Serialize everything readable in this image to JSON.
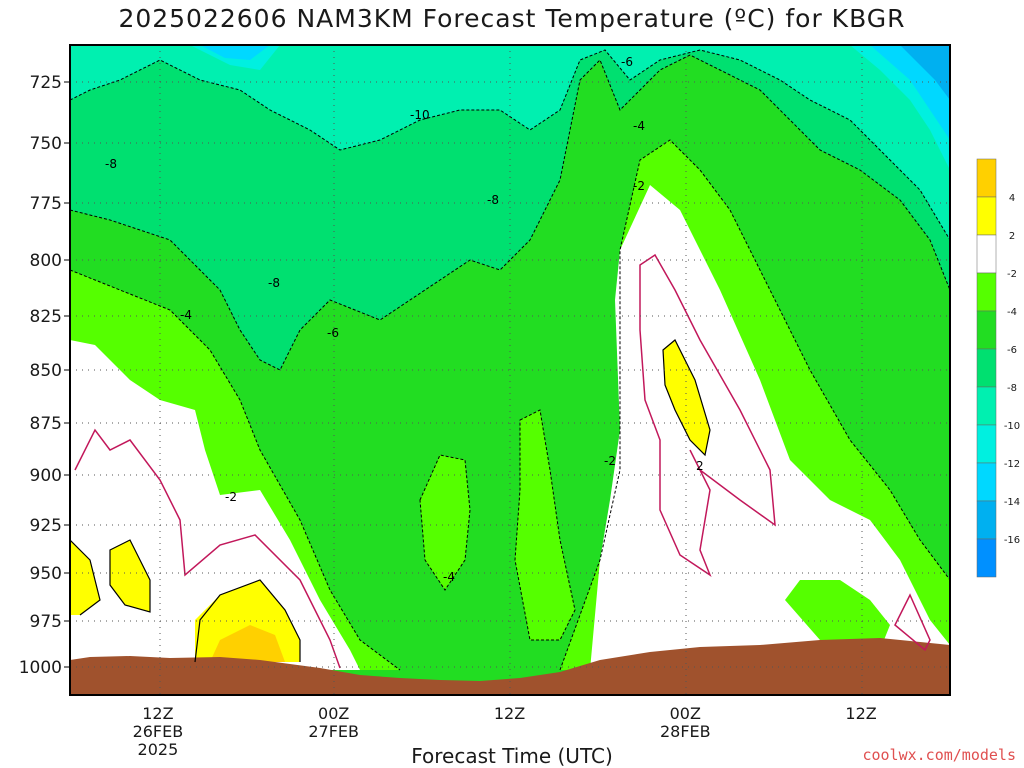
{
  "chart_data": {
    "type": "heatmap",
    "title": "2025022606 NAM3KM Forecast Temperature (ºC) for KBGR",
    "xlabel": "Forecast Time (UTC)",
    "ylabel": "",
    "y_ticks": [
      "725",
      "750",
      "775",
      "800",
      "825",
      "850",
      "875",
      "900",
      "925",
      "950",
      "975",
      "1000"
    ],
    "x_ticks": [
      {
        "hour": 6,
        "lines": [
          "12Z",
          "26FEB",
          "2025"
        ]
      },
      {
        "hour": 18,
        "lines": [
          "00Z",
          "27FEB"
        ]
      },
      {
        "hour": 30,
        "lines": [
          "12Z"
        ]
      },
      {
        "hour": 42,
        "lines": [
          "00Z",
          "28FEB"
        ]
      },
      {
        "hour": 54,
        "lines": [
          "12Z"
        ]
      }
    ],
    "colorbar": {
      "labels": [
        "4",
        "2",
        "-2",
        "-4",
        "-6",
        "-8",
        "-10",
        "-12",
        "-14",
        "-16"
      ],
      "bins": [
        {
          "color": "#ffd000"
        },
        {
          "color": "#ffff00"
        },
        {
          "color": "#ffffff"
        },
        {
          "color": "#55ff00"
        },
        {
          "color": "#22dd22"
        },
        {
          "color": "#00e070"
        },
        {
          "color": "#00f0b0"
        },
        {
          "color": "#00f0e0"
        },
        {
          "color": "#00d8ff"
        },
        {
          "color": "#00b0f0"
        },
        {
          "color": "#0090ff"
        }
      ]
    },
    "contour_labels": [
      "-6",
      "-4",
      "-2",
      "-10",
      "-8",
      "-8",
      "-8",
      "-6",
      "-4",
      "-2",
      "-2",
      "2",
      "-4"
    ],
    "terrain_color": "#a0522d",
    "grid": true
  },
  "credit": "coolwx.com/models"
}
